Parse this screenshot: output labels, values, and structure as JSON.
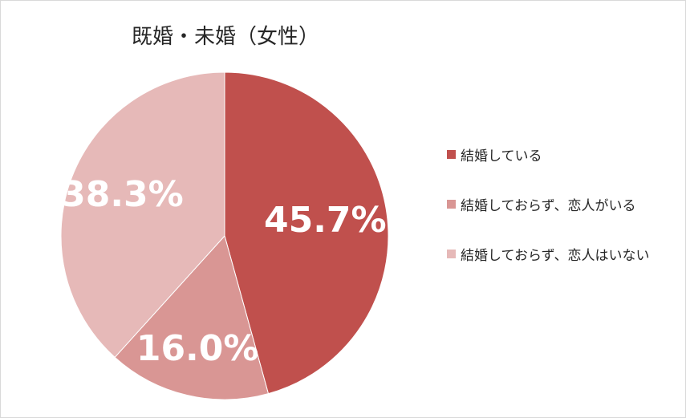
{
  "chart_data": {
    "type": "pie",
    "title": "既婚・未婚（女性）",
    "categories": [
      "結婚している",
      "結婚しておらず、恋人がいる",
      "結婚しておらず、恋人はいない"
    ],
    "values": [
      45.7,
      16.0,
      38.3
    ],
    "data_labels": [
      "45.7%",
      "16.0%",
      "38.3%"
    ],
    "colors": [
      "#c0504d",
      "#d99694",
      "#e6b9b8"
    ],
    "start_angle": "12 o'clock",
    "direction": "clockwise",
    "legend_position": "right"
  }
}
